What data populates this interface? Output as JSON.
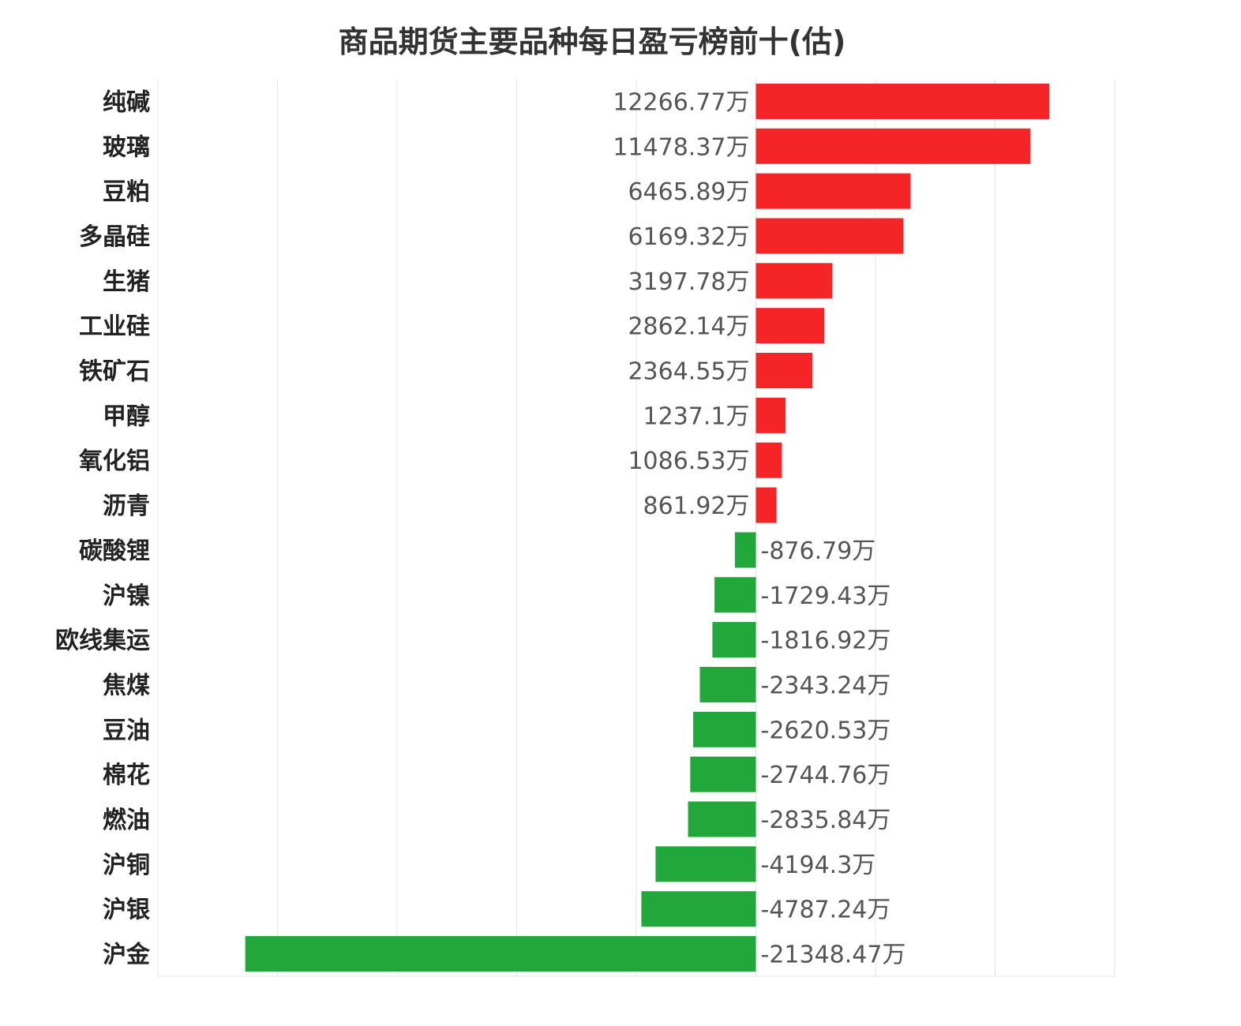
{
  "chart_data": {
    "type": "bar",
    "orientation": "horizontal",
    "title": "商品期货主要品种每日盈亏榜前十(估)",
    "categories": [
      "纯碱",
      "玻璃",
      "豆粕",
      "多晶硅",
      "生猪",
      "工业硅",
      "铁矿石",
      "甲醇",
      "氧化铝",
      "沥青",
      "碳酸锂",
      "沪镍",
      "欧线集运",
      "焦煤",
      "豆油",
      "棉花",
      "燃油",
      "沪铜",
      "沪银",
      "沪金"
    ],
    "values": [
      12266.77,
      11478.37,
      6465.89,
      6169.32,
      3197.78,
      2862.14,
      2364.55,
      1237.1,
      1086.53,
      861.92,
      -876.79,
      -1729.43,
      -1816.92,
      -2343.24,
      -2620.53,
      -2744.76,
      -2835.84,
      -4194.3,
      -4787.24,
      -21348.47
    ],
    "value_labels": [
      "12266.77万",
      "11478.37万",
      "6465.89万",
      "6169.32万",
      "3197.78万",
      "2862.14万",
      "2364.55万",
      "1237.1万",
      "1086.53万",
      "861.92万",
      "-876.79万",
      "-1729.43万",
      "-1816.92万",
      "-2343.24万",
      "-2620.53万",
      "-2744.76万",
      "-2835.84万",
      "-4194.3万",
      "-4787.24万",
      "-21348.47万"
    ],
    "xlim": [
      -25000,
      15000
    ],
    "grid": true,
    "colors": {
      "positive": "#f52527",
      "negative": "#22a83a",
      "grid": "#e6e6e6"
    }
  }
}
